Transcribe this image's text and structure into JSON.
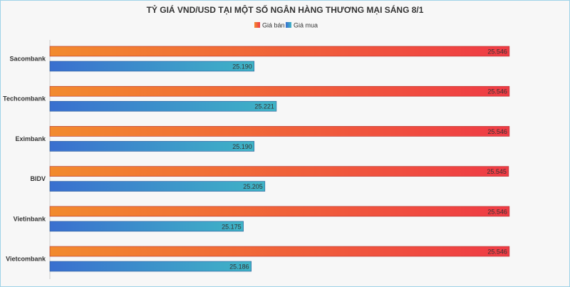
{
  "chart_data": {
    "type": "bar",
    "orientation": "horizontal",
    "title": "TỶ GIÁ VND/USD TẠI MỘT SỐ NGÂN HÀNG THƯƠNG MẠI SÁNG 8/1",
    "categories": [
      "Sacombank",
      "Techcombank",
      "Eximbank",
      "BIDV",
      "Vietinbank",
      "Vietcombank"
    ],
    "series": [
      {
        "name": "Giá bán",
        "values": [
          25546,
          25546,
          25546,
          25545,
          25546,
          25546
        ],
        "labels": [
          "25.546",
          "25.546",
          "25.546",
          "25.545",
          "25.546",
          "25.546"
        ],
        "color_start": "#f28a2e",
        "color_end": "#ef3b45"
      },
      {
        "name": "Giá mua",
        "values": [
          25190,
          25221,
          25190,
          25205,
          25175,
          25186
        ],
        "labels": [
          "25.190",
          "25.221",
          "25.190",
          "25.205",
          "25.175",
          "25.186"
        ],
        "color_start": "#3a6fcf",
        "color_end": "#3fb4c6"
      }
    ],
    "xlim": [
      24905,
      25566
    ],
    "grid": false,
    "legend_position": "top"
  }
}
